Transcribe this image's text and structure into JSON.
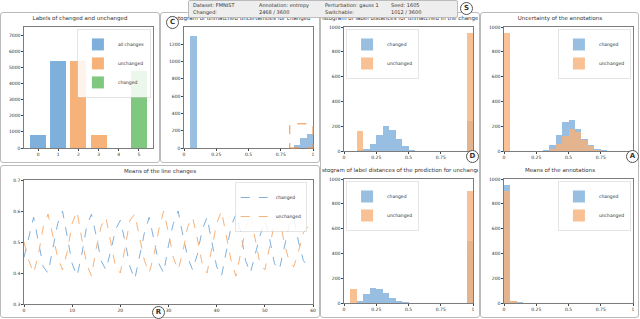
{
  "header": {
    "fields": [
      "Dataset: FMNIST",
      "Annotation: entropy",
      "Perturbation: gauss 1",
      "Seed: 1605",
      "Changed:",
      "2468 / 3600",
      "Switchable:",
      "1012 / 3600"
    ],
    "annotations": [
      "S"
    ]
  },
  "chart_data": [
    {
      "type": "bar",
      "title": "Labels of changed and unchanged",
      "series": [
        {
          "name": "all changes",
          "color": "#7fb0db",
          "x": [
            0,
            1
          ],
          "values": [
            800,
            5400
          ]
        },
        {
          "name": "unchanged",
          "color": "#f7b27a",
          "x": [
            2,
            3
          ],
          "values": [
            5400,
            800
          ]
        },
        {
          "name": "changed",
          "color": "#80c780",
          "x": [
            5
          ],
          "values": [
            4800
          ]
        }
      ],
      "xlim": [
        -0.7,
        5.7
      ],
      "xticks": [
        0,
        1,
        2,
        3,
        4,
        5
      ],
      "ylim": [
        0,
        7500
      ],
      "yticks": [
        0,
        1000,
        2000,
        3000,
        4000,
        5000,
        6000,
        7000
      ],
      "legend": "upper right",
      "grid": false
    },
    {
      "type": "histogram",
      "title": "Histogram of unmatched uncertainties for changed",
      "annotations": [
        "C"
      ],
      "bins": [
        0,
        0.05,
        0.1,
        0.15,
        0.2,
        0.25,
        0.3,
        0.35,
        0.4,
        0.45,
        0.5,
        0.55,
        0.6,
        0.65,
        0.7,
        0.75,
        0.8,
        0.85,
        0.9,
        0.95,
        1
      ],
      "series": [
        {
          "color": "#7fb0db",
          "values": [
            0,
            1300,
            0,
            0,
            0,
            0,
            0,
            0,
            0,
            0,
            0,
            0,
            0,
            0,
            0,
            0,
            0,
            40,
            120,
            160
          ]
        }
      ],
      "xlim": [
        0,
        1
      ],
      "xticks": [
        0,
        0.25,
        0.5,
        0.75,
        1
      ],
      "ylim": [
        0,
        1400
      ],
      "yticks": [
        0,
        200,
        400,
        600,
        800,
        1000,
        1200
      ],
      "grid": false
    },
    {
      "type": "line",
      "title": "Means of the line changes",
      "annotations": [
        "R"
      ],
      "x": [
        0,
        1,
        2,
        3,
        4,
        5,
        6,
        7,
        8,
        9,
        10,
        11,
        12,
        13,
        14,
        15,
        16,
        17,
        18,
        19,
        20,
        21,
        22,
        23,
        24,
        25,
        26,
        27,
        28,
        29,
        30,
        31,
        32,
        33,
        34,
        35,
        36,
        37,
        38,
        39,
        40,
        41,
        42,
        43,
        44,
        45,
        46,
        47,
        48,
        49,
        50,
        51,
        52,
        53,
        54,
        55,
        56,
        57,
        58,
        59
      ],
      "series": [
        {
          "name": "changed",
          "color": "#7fb0db",
          "line_style": "dash",
          "values": [
            0.45,
            0.52,
            0.58,
            0.5,
            0.42,
            0.4,
            0.48,
            0.56,
            0.6,
            0.51,
            0.43,
            0.39,
            0.46,
            0.55,
            0.59,
            0.52,
            0.44,
            0.41,
            0.47,
            0.54,
            0.57,
            0.5,
            0.42,
            0.38,
            0.45,
            0.53,
            0.58,
            0.51,
            0.43,
            0.4,
            0.49,
            0.56,
            0.6,
            0.52,
            0.45,
            0.41,
            0.46,
            0.54,
            0.58,
            0.5,
            0.42,
            0.39,
            0.47,
            0.55,
            0.59,
            0.53,
            0.44,
            0.4,
            0.46,
            0.52,
            0.57,
            0.51,
            0.43,
            0.41,
            0.48,
            0.55,
            0.58,
            0.5,
            0.44,
            0.42
          ]
        },
        {
          "name": "unchanged",
          "color": "#f7b27a",
          "line_style": "dash",
          "values": [
            0.5,
            0.44,
            0.4,
            0.46,
            0.55,
            0.59,
            0.52,
            0.45,
            0.41,
            0.47,
            0.56,
            0.6,
            0.51,
            0.43,
            0.39,
            0.48,
            0.55,
            0.58,
            0.5,
            0.42,
            0.4,
            0.49,
            0.57,
            0.59,
            0.52,
            0.44,
            0.4,
            0.46,
            0.54,
            0.6,
            0.53,
            0.45,
            0.41,
            0.47,
            0.55,
            0.58,
            0.51,
            0.43,
            0.4,
            0.48,
            0.56,
            0.6,
            0.52,
            0.44,
            0.39,
            0.46,
            0.54,
            0.59,
            0.51,
            0.43,
            0.41,
            0.49,
            0.56,
            0.58,
            0.5,
            0.44,
            0.42,
            0.47,
            0.53,
            0.55
          ]
        }
      ],
      "xlim": [
        0,
        60
      ],
      "xticks": [
        0,
        10,
        20,
        30,
        40,
        50,
        60
      ],
      "ylim": [
        0.3,
        0.7
      ],
      "yticks": [
        0.3,
        0.4,
        0.5,
        0.6,
        0.7
      ],
      "legend": "upper right",
      "grid": false
    },
    {
      "type": "histogram",
      "title": "Histogram of label distances for unmatched in the changed",
      "annotations": [
        "D"
      ],
      "bins": [
        0,
        0.05,
        0.1,
        0.15,
        0.2,
        0.25,
        0.3,
        0.35,
        0.4,
        0.45,
        0.5,
        0.55,
        0.6,
        0.65,
        0.7,
        0.75,
        0.8,
        0.85,
        0.9,
        0.95,
        1
      ],
      "series": [
        {
          "name": "changed",
          "color": "#7fb0db",
          "values": [
            0,
            0,
            5,
            20,
            60,
            130,
            200,
            170,
            100,
            40,
            10,
            0,
            0,
            0,
            0,
            0,
            0,
            0,
            0,
            240
          ]
        },
        {
          "name": "unchanged",
          "color": "#f7b27a",
          "values": [
            0,
            0,
            160,
            0,
            0,
            0,
            0,
            0,
            0,
            0,
            0,
            0,
            0,
            0,
            0,
            0,
            0,
            0,
            0,
            950
          ]
        }
      ],
      "xlim": [
        0,
        1
      ],
      "xticks": [
        0,
        0.25,
        0.5,
        0.75,
        1
      ],
      "ylim": [
        0,
        1000
      ],
      "yticks": [
        0,
        200,
        400,
        600,
        800,
        1000
      ],
      "legend": "upper left",
      "grid": false
    },
    {
      "type": "histogram",
      "title": "Histogram of label distances of the prediction for unchanged",
      "bins": [
        0,
        0.05,
        0.1,
        0.15,
        0.2,
        0.25,
        0.3,
        0.35,
        0.4,
        0.45,
        0.5,
        0.55,
        0.6,
        0.65,
        0.7,
        0.75,
        0.8,
        0.85,
        0.9,
        0.95,
        1
      ],
      "series": [
        {
          "name": "changed",
          "color": "#7fb0db",
          "values": [
            0,
            0,
            20,
            70,
            120,
            110,
            80,
            40,
            15,
            5,
            0,
            0,
            0,
            0,
            0,
            0,
            0,
            0,
            0,
            500
          ]
        },
        {
          "name": "unchanged",
          "color": "#f7b27a",
          "values": [
            0,
            110,
            0,
            0,
            0,
            0,
            0,
            0,
            0,
            0,
            0,
            0,
            0,
            0,
            0,
            0,
            0,
            0,
            0,
            900
          ]
        }
      ],
      "xlim": [
        0,
        1
      ],
      "xticks": [
        0,
        0.25,
        0.5,
        0.75,
        1
      ],
      "ylim": [
        0,
        1000
      ],
      "yticks": [
        0,
        200,
        400,
        600,
        800,
        1000
      ],
      "legend": "upper left",
      "grid": false
    },
    {
      "type": "histogram",
      "title": "Uncertainty of the annotations",
      "annotations": [
        "A"
      ],
      "bins": [
        0,
        0.05,
        0.1,
        0.15,
        0.2,
        0.25,
        0.3,
        0.35,
        0.4,
        0.45,
        0.5,
        0.55,
        0.6,
        0.65,
        0.7,
        0.75,
        0.8,
        0.85,
        0.9,
        0.95,
        1
      ],
      "series": [
        {
          "name": "changed",
          "color": "#7fb0db",
          "values": [
            0,
            0,
            0,
            0,
            0,
            0,
            10,
            50,
            130,
            230,
            250,
            180,
            100,
            45,
            15,
            5,
            0,
            0,
            0,
            0
          ]
        },
        {
          "name": "unchanged",
          "color": "#f7b27a",
          "values": [
            950,
            0,
            0,
            0,
            0,
            0,
            0,
            20,
            60,
            120,
            180,
            150,
            90,
            40,
            10,
            0,
            0,
            0,
            0,
            0
          ]
        }
      ],
      "xlim": [
        0,
        1
      ],
      "xticks": [
        0,
        0.25,
        0.5,
        0.75,
        1
      ],
      "ylim": [
        0,
        1000
      ],
      "yticks": [
        0,
        200,
        400,
        600,
        800,
        1000
      ],
      "legend": "upper right",
      "grid": false
    },
    {
      "type": "histogram",
      "title": "Means of the annotations",
      "bins": [
        0,
        0.05,
        0.1,
        0.15,
        0.2,
        0.25,
        0.3,
        0.35,
        0.4,
        0.45,
        0.5,
        0.55,
        0.6,
        0.65,
        0.7,
        0.75,
        0.8,
        0.85,
        0.9,
        0.95,
        1
      ],
      "series": [
        {
          "name": "changed",
          "color": "#7fb0db",
          "values": [
            950,
            20,
            5,
            0,
            0,
            0,
            0,
            0,
            0,
            0,
            0,
            0,
            0,
            0,
            0,
            0,
            0,
            0,
            0,
            0
          ]
        },
        {
          "name": "unchanged",
          "color": "#f7b27a",
          "values": [
            900,
            15,
            0,
            0,
            0,
            0,
            0,
            0,
            0,
            0,
            0,
            0,
            0,
            0,
            0,
            0,
            0,
            0,
            0,
            0
          ]
        }
      ],
      "xlim": [
        0,
        1
      ],
      "xticks": [
        0,
        0.25,
        0.5,
        0.75,
        1
      ],
      "ylim": [
        0,
        1000
      ],
      "yticks": [
        0,
        200,
        400,
        600,
        800,
        1000
      ],
      "legend": "upper right",
      "grid": false
    }
  ]
}
